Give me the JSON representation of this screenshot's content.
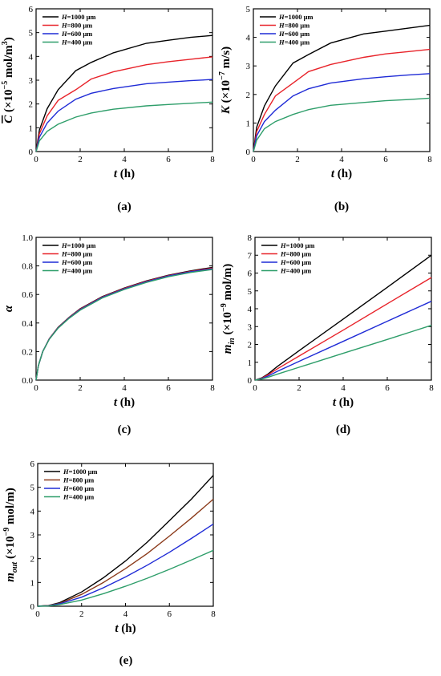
{
  "chart_data": [
    {
      "id": "a",
      "caption": "(a)",
      "type": "line",
      "ylabel_main": "C",
      "ylabel_unit": " (×10",
      "ylabel_exp": "−5",
      "ylabel_unit2": " mol/m",
      "ylabel_sup2": "3",
      "ylabel_end": ")",
      "ylabel_overbar": true,
      "xlabel_main": "t",
      "xlabel_unit": " (h)",
      "xlim": [
        0,
        8
      ],
      "ylim": [
        0,
        6
      ],
      "xticks": [
        0,
        2,
        4,
        6,
        8
      ],
      "yticks": [
        0,
        1,
        2,
        3,
        4,
        5,
        6
      ],
      "legend_position": "top-left",
      "series": [
        {
          "name": "H=1000 μm",
          "color": "#000000",
          "x": [
            0,
            0.15,
            0.5,
            1,
            1.8,
            2.5,
            3.5,
            5,
            6,
            7,
            8
          ],
          "y": [
            0,
            0.9,
            1.8,
            2.6,
            3.4,
            3.75,
            4.15,
            4.55,
            4.68,
            4.8,
            4.88
          ]
        },
        {
          "name": "H=800 μm",
          "color": "#e8232a",
          "x": [
            0,
            0.15,
            0.5,
            1,
            1.8,
            2.5,
            3.5,
            5,
            6,
            7,
            8
          ],
          "y": [
            0,
            0.75,
            1.5,
            2.15,
            2.6,
            3.05,
            3.35,
            3.65,
            3.78,
            3.88,
            3.98
          ]
        },
        {
          "name": "H=600 μm",
          "color": "#1f2bd6",
          "x": [
            0,
            0.15,
            0.5,
            1,
            1.8,
            2.5,
            3.5,
            5,
            6,
            7,
            8
          ],
          "y": [
            0,
            0.6,
            1.2,
            1.7,
            2.2,
            2.45,
            2.65,
            2.85,
            2.92,
            2.98,
            3.03
          ]
        },
        {
          "name": "H=400 μm",
          "color": "#2e9e6a",
          "x": [
            0,
            0.15,
            0.5,
            1,
            1.8,
            2.5,
            3.5,
            5,
            6,
            7,
            8
          ],
          "y": [
            0,
            0.45,
            0.85,
            1.15,
            1.45,
            1.62,
            1.78,
            1.92,
            1.98,
            2.03,
            2.08
          ]
        }
      ]
    },
    {
      "id": "b",
      "caption": "(b)",
      "type": "line",
      "ylabel_main": "K",
      "ylabel_unit": " (×10",
      "ylabel_exp": "−7",
      "ylabel_unit2": " m/s",
      "ylabel_sup2": "",
      "ylabel_end": ")",
      "ylabel_overbar": false,
      "xlabel_main": "t",
      "xlabel_unit": " (h)",
      "xlim": [
        0,
        8
      ],
      "ylim": [
        0,
        5
      ],
      "xticks": [
        0,
        2,
        4,
        6,
        8
      ],
      "yticks": [
        0,
        1,
        2,
        3,
        4,
        5
      ],
      "legend_position": "top-left",
      "series": [
        {
          "name": "H=1000 μm",
          "color": "#000000",
          "x": [
            0,
            0.15,
            0.5,
            1,
            1.8,
            2.5,
            3.5,
            5,
            6,
            7,
            8
          ],
          "y": [
            0,
            0.85,
            1.6,
            2.3,
            3.1,
            3.4,
            3.8,
            4.12,
            4.22,
            4.32,
            4.42
          ]
        },
        {
          "name": "H=800 μm",
          "color": "#e8232a",
          "x": [
            0,
            0.15,
            0.5,
            1,
            1.8,
            2.5,
            3.5,
            5,
            6,
            7,
            8
          ],
          "y": [
            0,
            0.7,
            1.3,
            1.95,
            2.4,
            2.8,
            3.05,
            3.3,
            3.42,
            3.5,
            3.58
          ]
        },
        {
          "name": "H=600 μm",
          "color": "#1f2bd6",
          "x": [
            0,
            0.15,
            0.5,
            1,
            1.8,
            2.5,
            3.5,
            5,
            6,
            7,
            8
          ],
          "y": [
            0,
            0.55,
            1.05,
            1.45,
            1.95,
            2.2,
            2.4,
            2.55,
            2.62,
            2.68,
            2.73
          ]
        },
        {
          "name": "H=400 μm",
          "color": "#2e9e6a",
          "x": [
            0,
            0.15,
            0.5,
            1,
            1.8,
            2.5,
            3.5,
            5,
            6,
            7,
            8
          ],
          "y": [
            0,
            0.4,
            0.8,
            1.05,
            1.3,
            1.47,
            1.62,
            1.72,
            1.78,
            1.82,
            1.87
          ]
        }
      ]
    },
    {
      "id": "c",
      "caption": "(c)",
      "type": "line",
      "ylabel_main": "α",
      "ylabel_unit": "",
      "ylabel_exp": "",
      "ylabel_unit2": "",
      "ylabel_sup2": "",
      "ylabel_end": "",
      "ylabel_overbar": false,
      "xlabel_main": "t",
      "xlabel_unit": " (h)",
      "xlim": [
        0,
        8
      ],
      "ylim": [
        0,
        1.0
      ],
      "xticks": [
        0,
        2,
        4,
        6,
        8
      ],
      "yticks": [
        0.0,
        0.2,
        0.4,
        0.6,
        0.8,
        1.0
      ],
      "ytick_labels": [
        "0.0",
        "0.2",
        "0.4",
        "0.6",
        "0.8",
        "1.0"
      ],
      "legend_position": "top-left",
      "series": [
        {
          "name": "H=1000 μm",
          "color": "#000000",
          "x": [
            0,
            0.1,
            0.3,
            0.6,
            1,
            1.5,
            2,
            3,
            4,
            5,
            6,
            7,
            8
          ],
          "y": [
            0,
            0.1,
            0.2,
            0.29,
            0.37,
            0.44,
            0.5,
            0.585,
            0.645,
            0.695,
            0.735,
            0.765,
            0.79
          ]
        },
        {
          "name": "H=800 μm",
          "color": "#e8232a",
          "x": [
            0,
            0.1,
            0.3,
            0.6,
            1,
            1.5,
            2,
            3,
            4,
            5,
            6,
            7,
            8
          ],
          "y": [
            0,
            0.1,
            0.2,
            0.29,
            0.368,
            0.438,
            0.497,
            0.582,
            0.642,
            0.692,
            0.732,
            0.762,
            0.785
          ]
        },
        {
          "name": "H=600 μm",
          "color": "#1f2bd6",
          "x": [
            0,
            0.1,
            0.3,
            0.6,
            1,
            1.5,
            2,
            3,
            4,
            5,
            6,
            7,
            8
          ],
          "y": [
            0,
            0.1,
            0.2,
            0.288,
            0.366,
            0.436,
            0.494,
            0.579,
            0.639,
            0.689,
            0.729,
            0.759,
            0.78
          ]
        },
        {
          "name": "H=400 μm",
          "color": "#2e9e6a",
          "x": [
            0,
            0.1,
            0.3,
            0.6,
            1,
            1.5,
            2,
            3,
            4,
            5,
            6,
            7,
            8
          ],
          "y": [
            0,
            0.1,
            0.2,
            0.286,
            0.364,
            0.433,
            0.49,
            0.575,
            0.635,
            0.684,
            0.724,
            0.754,
            0.775
          ]
        }
      ]
    },
    {
      "id": "d",
      "caption": "(d)",
      "type": "line",
      "ylabel_main": "m",
      "ylabel_sub": "in",
      "ylabel_unit": " (×10",
      "ylabel_exp": "−9",
      "ylabel_unit2": " mol/m",
      "ylabel_sup2": "",
      "ylabel_end": ")",
      "ylabel_overbar": false,
      "xlabel_main": "t",
      "xlabel_unit": " (h)",
      "xlim": [
        0,
        8
      ],
      "ylim": [
        0,
        8
      ],
      "xticks": [
        0,
        2,
        4,
        6,
        8
      ],
      "yticks": [
        0,
        1,
        2,
        3,
        4,
        5,
        6,
        7,
        8
      ],
      "legend_position": "top-left",
      "series": [
        {
          "name": "H=1000 μm",
          "color": "#000000",
          "x": [
            0,
            0.3,
            0.6,
            1,
            2,
            4,
            6,
            8
          ],
          "y": [
            0,
            0.12,
            0.35,
            0.75,
            1.65,
            3.42,
            5.2,
            7.0
          ]
        },
        {
          "name": "H=800 μm",
          "color": "#e8232a",
          "x": [
            0,
            0.3,
            0.6,
            1,
            2,
            4,
            6,
            8
          ],
          "y": [
            0,
            0.1,
            0.3,
            0.62,
            1.35,
            2.8,
            4.28,
            5.75
          ]
        },
        {
          "name": "H=600 μm",
          "color": "#1f2bd6",
          "x": [
            0,
            0.3,
            0.6,
            1,
            2,
            4,
            6,
            8
          ],
          "y": [
            0,
            0.08,
            0.23,
            0.48,
            1.05,
            2.17,
            3.3,
            4.42
          ]
        },
        {
          "name": "H=400 μm",
          "color": "#2e9e6a",
          "x": [
            0,
            0.3,
            0.6,
            1,
            2,
            4,
            6,
            8
          ],
          "y": [
            0,
            0.06,
            0.16,
            0.33,
            0.72,
            1.5,
            2.28,
            3.07
          ]
        }
      ]
    },
    {
      "id": "e",
      "caption": "(e)",
      "type": "line",
      "ylabel_main": "m",
      "ylabel_sub": "out",
      "ylabel_unit": " (×10",
      "ylabel_exp": "−9",
      "ylabel_unit2": " mol/m",
      "ylabel_sup2": "",
      "ylabel_end": ")",
      "ylabel_overbar": false,
      "xlabel_main": "t",
      "xlabel_unit": " (h)",
      "xlim": [
        0,
        8
      ],
      "ylim": [
        0,
        6
      ],
      "xticks": [
        0,
        2,
        4,
        6,
        8
      ],
      "yticks": [
        0,
        1,
        2,
        3,
        4,
        5,
        6
      ],
      "legend_position": "top-left",
      "series": [
        {
          "name": "H=1000 μm",
          "color": "#000000",
          "x": [
            0,
            0.5,
            1,
            2,
            3,
            4,
            5,
            6,
            7,
            8
          ],
          "y": [
            0,
            0.03,
            0.15,
            0.6,
            1.2,
            1.9,
            2.7,
            3.6,
            4.5,
            5.5
          ]
        },
        {
          "name": "H=800 μm",
          "color": "#8b3a1a",
          "x": [
            0,
            0.5,
            1,
            2,
            3,
            4,
            5,
            6,
            7,
            8
          ],
          "y": [
            0,
            0.03,
            0.12,
            0.5,
            1.0,
            1.58,
            2.22,
            2.95,
            3.7,
            4.5
          ]
        },
        {
          "name": "H=600 μm",
          "color": "#1f2bd6",
          "x": [
            0,
            0.5,
            1,
            2,
            3,
            4,
            5,
            6,
            7,
            8
          ],
          "y": [
            0,
            0.02,
            0.1,
            0.38,
            0.78,
            1.23,
            1.73,
            2.27,
            2.85,
            3.45
          ]
        },
        {
          "name": "H=400 μm",
          "color": "#2e9e6a",
          "x": [
            0,
            0.5,
            1,
            2,
            3,
            4,
            5,
            6,
            7,
            8
          ],
          "y": [
            0,
            0.01,
            0.07,
            0.26,
            0.53,
            0.84,
            1.18,
            1.55,
            1.94,
            2.35
          ]
        }
      ]
    }
  ]
}
